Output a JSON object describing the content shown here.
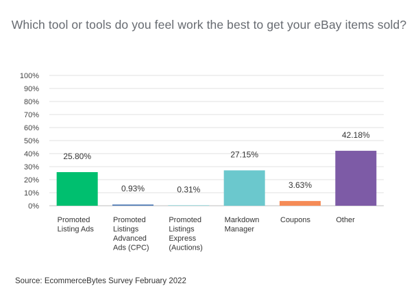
{
  "title": "Which tool or tools do you feel work the best to get your eBay items sold?",
  "source": "Source: EcommerceBytes Survey February 2022",
  "chart_data": {
    "type": "bar",
    "title": "Which tool or tools do you feel work the best to get your eBay items sold?",
    "categories": [
      [
        "Promoted",
        "Listing Ads"
      ],
      [
        "Promoted",
        "Listings",
        "Advanced",
        "Ads (CPC)"
      ],
      [
        "Promoted",
        "Listings",
        "Express",
        "(Auctions)"
      ],
      [
        "Markdown",
        "Manager"
      ],
      [
        "Coupons"
      ],
      [
        "Other"
      ]
    ],
    "values": [
      25.8,
      0.93,
      0.31,
      27.15,
      3.63,
      42.18
    ],
    "value_labels": [
      "25.80%",
      "0.93%",
      "0.31%",
      "27.15%",
      "3.63%",
      "42.18%"
    ],
    "colors": [
      "#00bf6f",
      "#507cb6",
      "#6bc8cd",
      "#6bc8cd",
      "#f58b56",
      "#7d5ba6"
    ],
    "ylim": [
      0,
      100
    ],
    "yticks": [
      0,
      10,
      20,
      30,
      40,
      50,
      60,
      70,
      80,
      90,
      100
    ],
    "ytick_labels": [
      "0%",
      "10%",
      "20%",
      "30%",
      "40%",
      "50%",
      "60%",
      "70%",
      "80%",
      "90%",
      "100%"
    ],
    "grid": true,
    "xlabel": "",
    "ylabel": ""
  }
}
